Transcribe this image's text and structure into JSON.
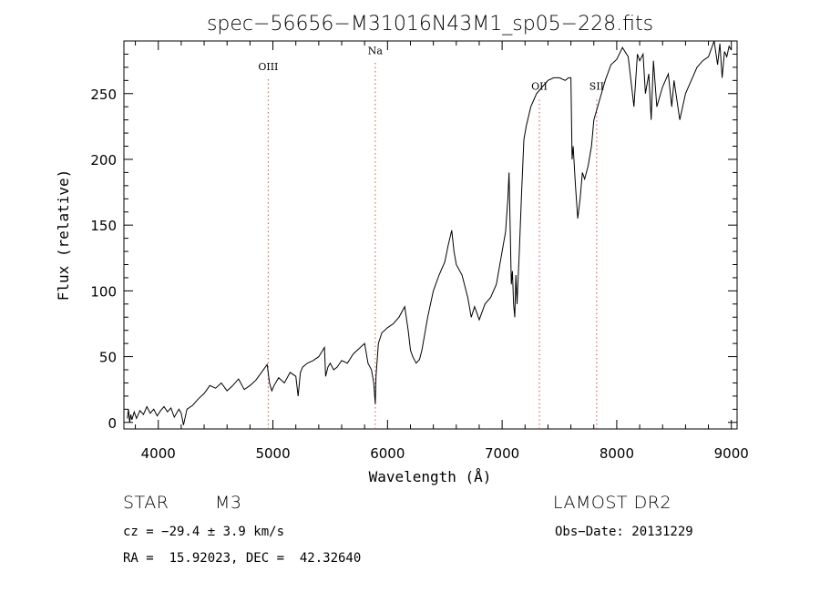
{
  "chart_data": {
    "type": "line",
    "title": "spec−56656−M31016N43M1_sp05−228.fits",
    "xlabel": "Wavelength (Å)",
    "ylabel": "Flux (relative)",
    "xlim": [
      3700,
      9050
    ],
    "ylim": [
      -5,
      290
    ],
    "xticks": [
      4000,
      5000,
      6000,
      7000,
      8000,
      9000
    ],
    "yticks": [
      0,
      50,
      100,
      150,
      200,
      250
    ],
    "grid": false,
    "line_color": "#000000",
    "marker_color": "#d94848",
    "markers": [
      {
        "label": "OIII",
        "x": 4959,
        "label_y": 268
      },
      {
        "label": "Na",
        "x": 5893,
        "label_y": 280
      },
      {
        "label": "OII",
        "x": 7325,
        "label_y": 253
      },
      {
        "label": "SII",
        "x": 7825,
        "label_y": 253
      }
    ],
    "series": [
      {
        "x": [
          3730,
          3740,
          3750,
          3760,
          3770,
          3790,
          3810,
          3840,
          3870,
          3900,
          3930,
          3960,
          3990,
          4020,
          4050,
          4080,
          4110,
          4140,
          4180,
          4200,
          4220,
          4250,
          4300,
          4350,
          4400,
          4450,
          4500,
          4550,
          4600,
          4650,
          4700,
          4750,
          4800,
          4850,
          4900,
          4950,
          4970,
          4990,
          5010,
          5050,
          5100,
          5150,
          5200,
          5220,
          5240,
          5260,
          5300,
          5350,
          5400,
          5450,
          5460,
          5480,
          5500,
          5530,
          5560,
          5600,
          5650,
          5700,
          5750,
          5800,
          5830,
          5860,
          5880,
          5893,
          5900,
          5920,
          5950,
          6000,
          6050,
          6100,
          6150,
          6180,
          6200,
          6220,
          6250,
          6280,
          6300,
          6350,
          6400,
          6450,
          6500,
          6530,
          6560,
          6580,
          6600,
          6650,
          6700,
          6730,
          6760,
          6800,
          6850,
          6900,
          6950,
          7000,
          7030,
          7050,
          7060,
          7070,
          7080,
          7090,
          7100,
          7110,
          7120,
          7130,
          7140,
          7150,
          7170,
          7190,
          7210,
          7250,
          7300,
          7350,
          7400,
          7450,
          7500,
          7550,
          7580,
          7600,
          7610,
          7620,
          7640,
          7660,
          7680,
          7700,
          7720,
          7750,
          7780,
          7800,
          7850,
          7900,
          7950,
          8000,
          8050,
          8100,
          8150,
          8180,
          8200,
          8230,
          8250,
          8280,
          8300,
          8320,
          8350,
          8400,
          8450,
          8480,
          8500,
          8550,
          8600,
          8650,
          8700,
          8750,
          8800,
          8850,
          8880,
          8900,
          8920,
          8940,
          8960,
          8980,
          9000
        ],
        "y": [
          3,
          10,
          0,
          6,
          2,
          8,
          3,
          9,
          6,
          12,
          7,
          10,
          5,
          9,
          12,
          8,
          11,
          4,
          10,
          7,
          -2,
          10,
          13,
          18,
          22,
          28,
          26,
          30,
          24,
          28,
          33,
          25,
          28,
          32,
          38,
          44,
          30,
          24,
          28,
          34,
          30,
          38,
          35,
          20,
          38,
          42,
          45,
          47,
          50,
          57,
          35,
          42,
          45,
          40,
          42,
          47,
          45,
          52,
          56,
          60,
          45,
          40,
          30,
          14,
          35,
          60,
          68,
          72,
          75,
          80,
          88,
          70,
          55,
          50,
          45,
          48,
          55,
          80,
          100,
          112,
          122,
          135,
          146,
          130,
          120,
          112,
          95,
          80,
          88,
          78,
          90,
          95,
          105,
          130,
          145,
          170,
          190,
          150,
          105,
          115,
          90,
          80,
          112,
          90,
          110,
          130,
          175,
          215,
          225,
          240,
          250,
          255,
          260,
          262,
          262,
          260,
          262,
          262,
          200,
          210,
          180,
          155,
          170,
          190,
          185,
          195,
          210,
          230,
          245,
          260,
          272,
          276,
          285,
          278,
          240,
          280,
          275,
          280,
          250,
          265,
          230,
          275,
          240,
          255,
          265,
          240,
          260,
          230,
          250,
          260,
          270,
          275,
          278,
          290,
          272,
          288,
          262,
          282,
          278,
          286,
          283
        ]
      }
    ]
  },
  "info": {
    "object_type": "STAR",
    "subclass": "M3",
    "survey": "LAMOST DR2",
    "cz_line": "cz = −29.4 ± 3.9 km/s",
    "obs_date": "Obs−Date: 20131229",
    "coords_line": "RA =  15.92023, DEC =  42.32640"
  }
}
